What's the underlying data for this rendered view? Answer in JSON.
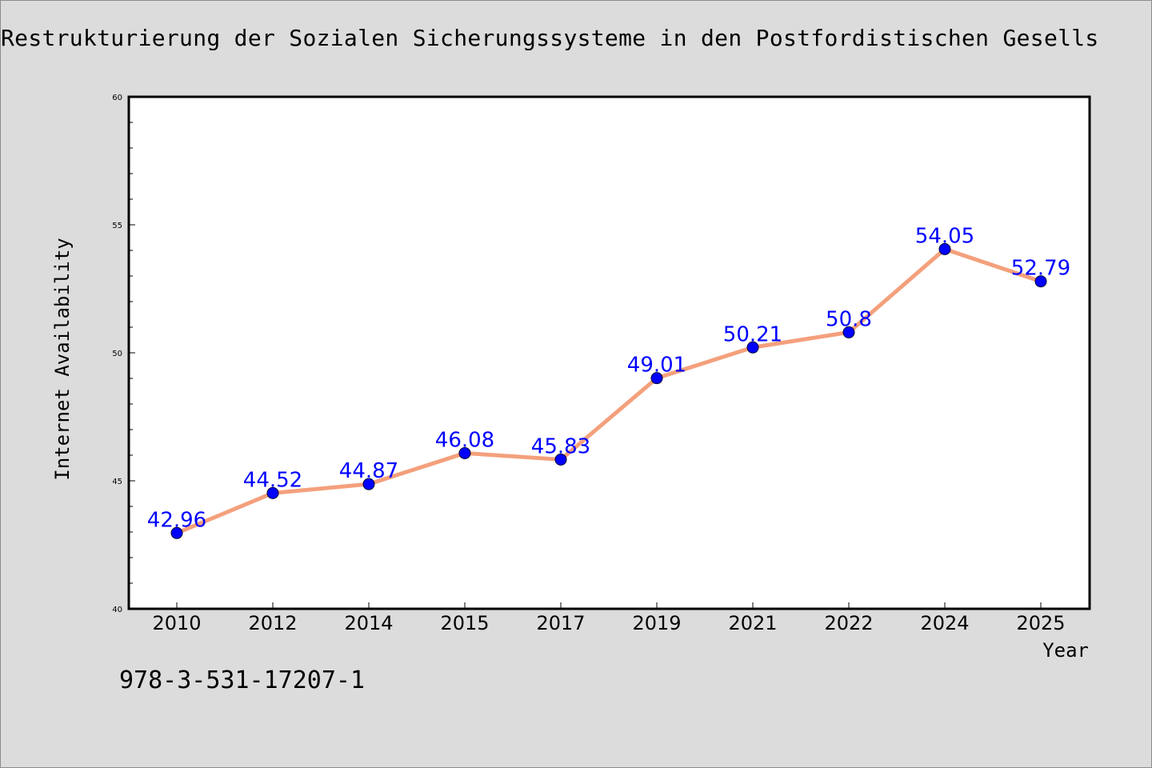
{
  "chart_data": {
    "type": "line",
    "title": "Restrukturierung der Sozialen Sicherungssysteme in den Postfordistischen Gesells",
    "xlabel": "Year",
    "ylabel": "Internet Availability",
    "categories": [
      "2010",
      "2012",
      "2014",
      "2015",
      "2017",
      "2019",
      "2021",
      "2022",
      "2024",
      "2025"
    ],
    "series": [
      {
        "values": [
          42.96,
          44.52,
          44.87,
          46.08,
          45.83,
          49.01,
          50.21,
          50.8,
          54.05,
          52.79
        ],
        "labels": [
          "42.96",
          "44.52",
          "44.87",
          "46.08",
          "45.83",
          "49.01",
          "50.21",
          "50.8",
          "54.05",
          "52.79"
        ]
      }
    ],
    "ylim": [
      40,
      60
    ],
    "yticks": [
      "40",
      "45",
      "50",
      "55",
      "60"
    ],
    "grid": false,
    "colors": {
      "line": "#f4a07c",
      "marker": "#0000ff",
      "data_label": "#0000ff",
      "plot_background": "#ffffff",
      "figure_background": "#dcdcdc"
    }
  },
  "footer": {
    "isbn": "978-3-531-17207-1"
  }
}
